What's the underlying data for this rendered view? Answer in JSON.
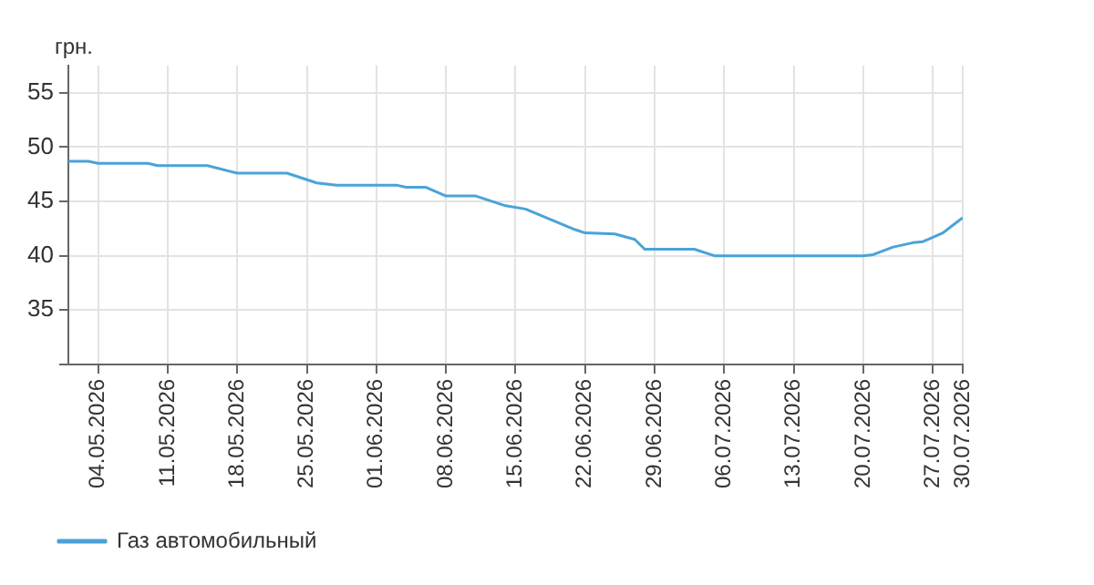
{
  "chart_data": {
    "type": "line",
    "ylabel": "грн.",
    "x": [
      "2026-05-01",
      "2026-05-03",
      "2026-05-04",
      "2026-05-09",
      "2026-05-10",
      "2026-05-15",
      "2026-05-18",
      "2026-05-23",
      "2026-05-26",
      "2026-05-28",
      "2026-06-03",
      "2026-06-04",
      "2026-06-06",
      "2026-06-08",
      "2026-06-11",
      "2026-06-14",
      "2026-06-16",
      "2026-06-21",
      "2026-06-22",
      "2026-06-25",
      "2026-06-27",
      "2026-06-28",
      "2026-07-03",
      "2026-07-05",
      "2026-07-08",
      "2026-07-20",
      "2026-07-21",
      "2026-07-23",
      "2026-07-25",
      "2026-07-26",
      "2026-07-28",
      "2026-07-29",
      "2026-07-30"
    ],
    "series": [
      {
        "name": "Газ автомобильный",
        "color": "#4aa3d8",
        "values": [
          48.7,
          48.7,
          48.5,
          48.5,
          48.3,
          48.3,
          47.6,
          47.6,
          46.7,
          46.5,
          46.5,
          46.3,
          46.3,
          45.5,
          45.5,
          44.6,
          44.3,
          42.4,
          42.1,
          42.0,
          41.5,
          40.6,
          40.6,
          40.0,
          40.0,
          40.0,
          40.1,
          40.8,
          41.2,
          41.3,
          42.1,
          42.8,
          43.5
        ]
      }
    ],
    "xlim": [
      "2026-05-01",
      "2026-07-30"
    ],
    "xticks": [
      {
        "value": "2026-05-04",
        "label": "04.05.2026"
      },
      {
        "value": "2026-05-11",
        "label": "11.05.2026"
      },
      {
        "value": "2026-05-18",
        "label": "18.05.2026"
      },
      {
        "value": "2026-05-25",
        "label": "25.05.2026"
      },
      {
        "value": "2026-06-01",
        "label": "01.06.2026"
      },
      {
        "value": "2026-06-08",
        "label": "08.06.2026"
      },
      {
        "value": "2026-06-15",
        "label": "15.06.2026"
      },
      {
        "value": "2026-06-22",
        "label": "22.06.2026"
      },
      {
        "value": "2026-06-29",
        "label": "29.06.2026"
      },
      {
        "value": "2026-07-06",
        "label": "06.07.2026"
      },
      {
        "value": "2026-07-13",
        "label": "13.07.2026"
      },
      {
        "value": "2026-07-20",
        "label": "20.07.2026"
      },
      {
        "value": "2026-07-27",
        "label": "27.07.2026"
      },
      {
        "value": "2026-07-30",
        "label": "30.07.2026"
      }
    ],
    "ylim": [
      30,
      57.5
    ],
    "yticks": [
      {
        "value": 30,
        "label": null
      },
      35,
      40,
      45,
      50,
      55
    ],
    "grid": true,
    "legend": "bottom left",
    "marker": "none",
    "line_style": "solid"
  }
}
